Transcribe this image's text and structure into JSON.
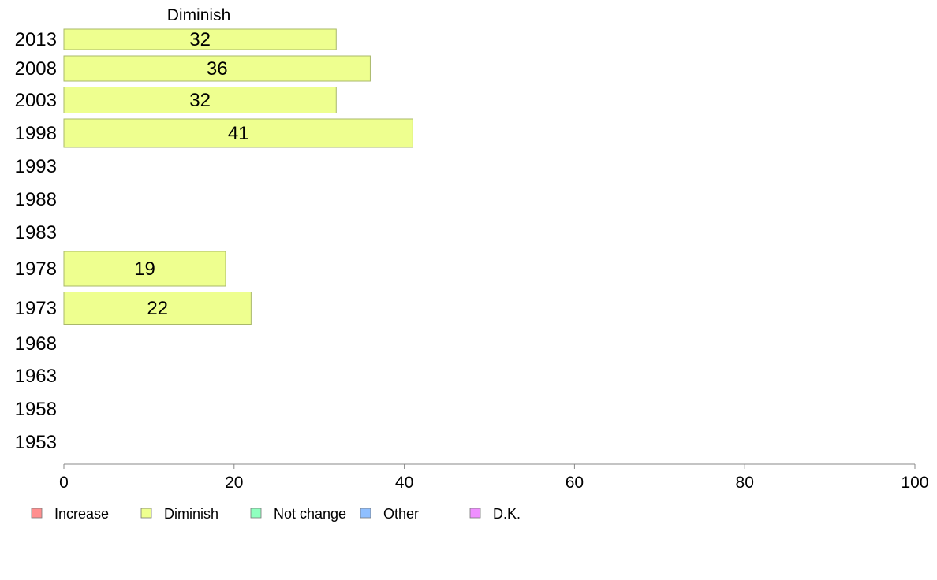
{
  "chart_data": {
    "type": "bar",
    "orientation": "horizontal",
    "panel_title": "Diminish",
    "categories": [
      "2013",
      "2008",
      "2003",
      "1998",
      "1993",
      "1988",
      "1983",
      "1978",
      "1973",
      "1968",
      "1963",
      "1958",
      "1953"
    ],
    "series": [
      {
        "name": "Diminish",
        "values": [
          32,
          36,
          32,
          41,
          null,
          null,
          null,
          19,
          22,
          null,
          null,
          null,
          null
        ]
      }
    ],
    "xlim": [
      0,
      100
    ],
    "xticks": [
      "0",
      "20",
      "40",
      "60",
      "80",
      "100"
    ],
    "grid": false,
    "legend_position": "bottom-left"
  },
  "legend": [
    {
      "label": "Increase",
      "color": "#ff8f8f"
    },
    {
      "label": "Diminish",
      "color": "#eeff8f"
    },
    {
      "label": "Not change",
      "color": "#8fffbf"
    },
    {
      "label": "Other",
      "color": "#8fbfff"
    },
    {
      "label": "D.K.",
      "color": "#ef8fff"
    }
  ],
  "colors": {
    "bar_fill": "#eeff8f",
    "bar_stroke": "#a9b86a",
    "axis": "#888888"
  }
}
